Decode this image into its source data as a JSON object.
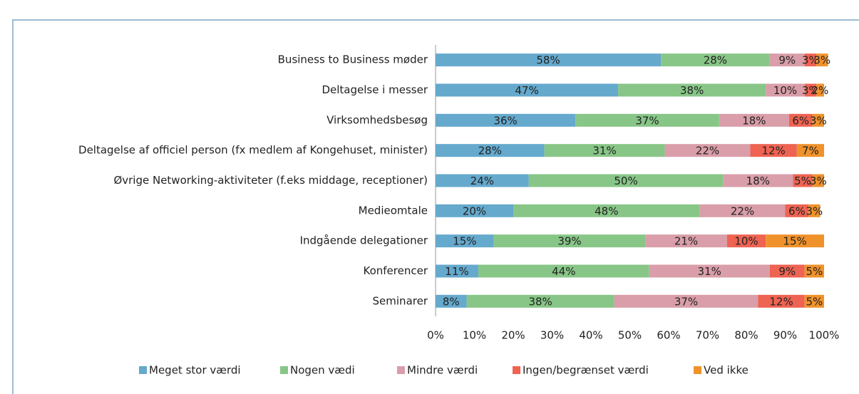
{
  "chart_data": {
    "type": "stacked-bar-horizontal",
    "categories": [
      "Business to Business møder",
      "Deltagelse i messer",
      "Virksomhedsbesøg",
      "Deltagelse af officiel person (fx medlem af Kongehuset, minister)",
      "Øvrige Networking-aktiviteter (f.eks middage, receptioner)",
      "Medieomtale",
      "Indgående delegationer",
      "Konferencer",
      "Seminarer"
    ],
    "series": [
      {
        "name": "Meget stor værdi",
        "color": "#65a9cd",
        "values": [
          58,
          47,
          36,
          28,
          24,
          20,
          15,
          11,
          8
        ],
        "value_labels": [
          "58%",
          "47%",
          "36%",
          "28%",
          "24%",
          "20%",
          "15%",
          "11%",
          "8%"
        ]
      },
      {
        "name": "Nogen vædi",
        "color": "#88c687",
        "values": [
          28,
          38,
          37,
          31,
          50,
          48,
          39,
          44,
          38
        ],
        "value_labels": [
          "28%",
          "38%",
          "37%",
          "31%",
          "50%",
          "48%",
          "39%",
          "44%",
          "38%"
        ]
      },
      {
        "name": "Mindre værdi",
        "color": "#d99ea9",
        "values": [
          9,
          10,
          18,
          22,
          18,
          22,
          21,
          31,
          37
        ],
        "value_labels": [
          "9%",
          "10%",
          "18%",
          "22%",
          "18%",
          "22%",
          "21%",
          "31%",
          "37%"
        ]
      },
      {
        "name": "Ingen/begrænset værdi",
        "color": "#ee6352",
        "values": [
          3,
          3,
          6,
          12,
          5,
          6,
          10,
          9,
          12
        ],
        "value_labels": [
          "3%",
          "3%",
          "6%",
          "12%",
          "5%",
          "6%",
          "10%",
          "9%",
          "12%"
        ]
      },
      {
        "name": "Ved ikke",
        "color": "#f0922b",
        "values": [
          3,
          2,
          3,
          7,
          3,
          3,
          15,
          5,
          5
        ],
        "value_labels": [
          "3%",
          "2%",
          "3%",
          "7%",
          "3%",
          "3%",
          "15%",
          "5%",
          "5%"
        ]
      }
    ],
    "xlim": [
      0,
      100
    ],
    "xticks": [
      {
        "value": 0,
        "label": "0%"
      },
      {
        "value": 10,
        "label": "10%"
      },
      {
        "value": 20,
        "label": "20%"
      },
      {
        "value": 30,
        "label": "30%"
      },
      {
        "value": 40,
        "label": "40%"
      },
      {
        "value": 50,
        "label": "50%"
      },
      {
        "value": 60,
        "label": "60%"
      },
      {
        "value": 70,
        "label": "70%"
      },
      {
        "value": 80,
        "label": "80%"
      },
      {
        "value": 90,
        "label": "90%"
      },
      {
        "value": 100,
        "label": "100%"
      }
    ],
    "legend": "bottom"
  }
}
